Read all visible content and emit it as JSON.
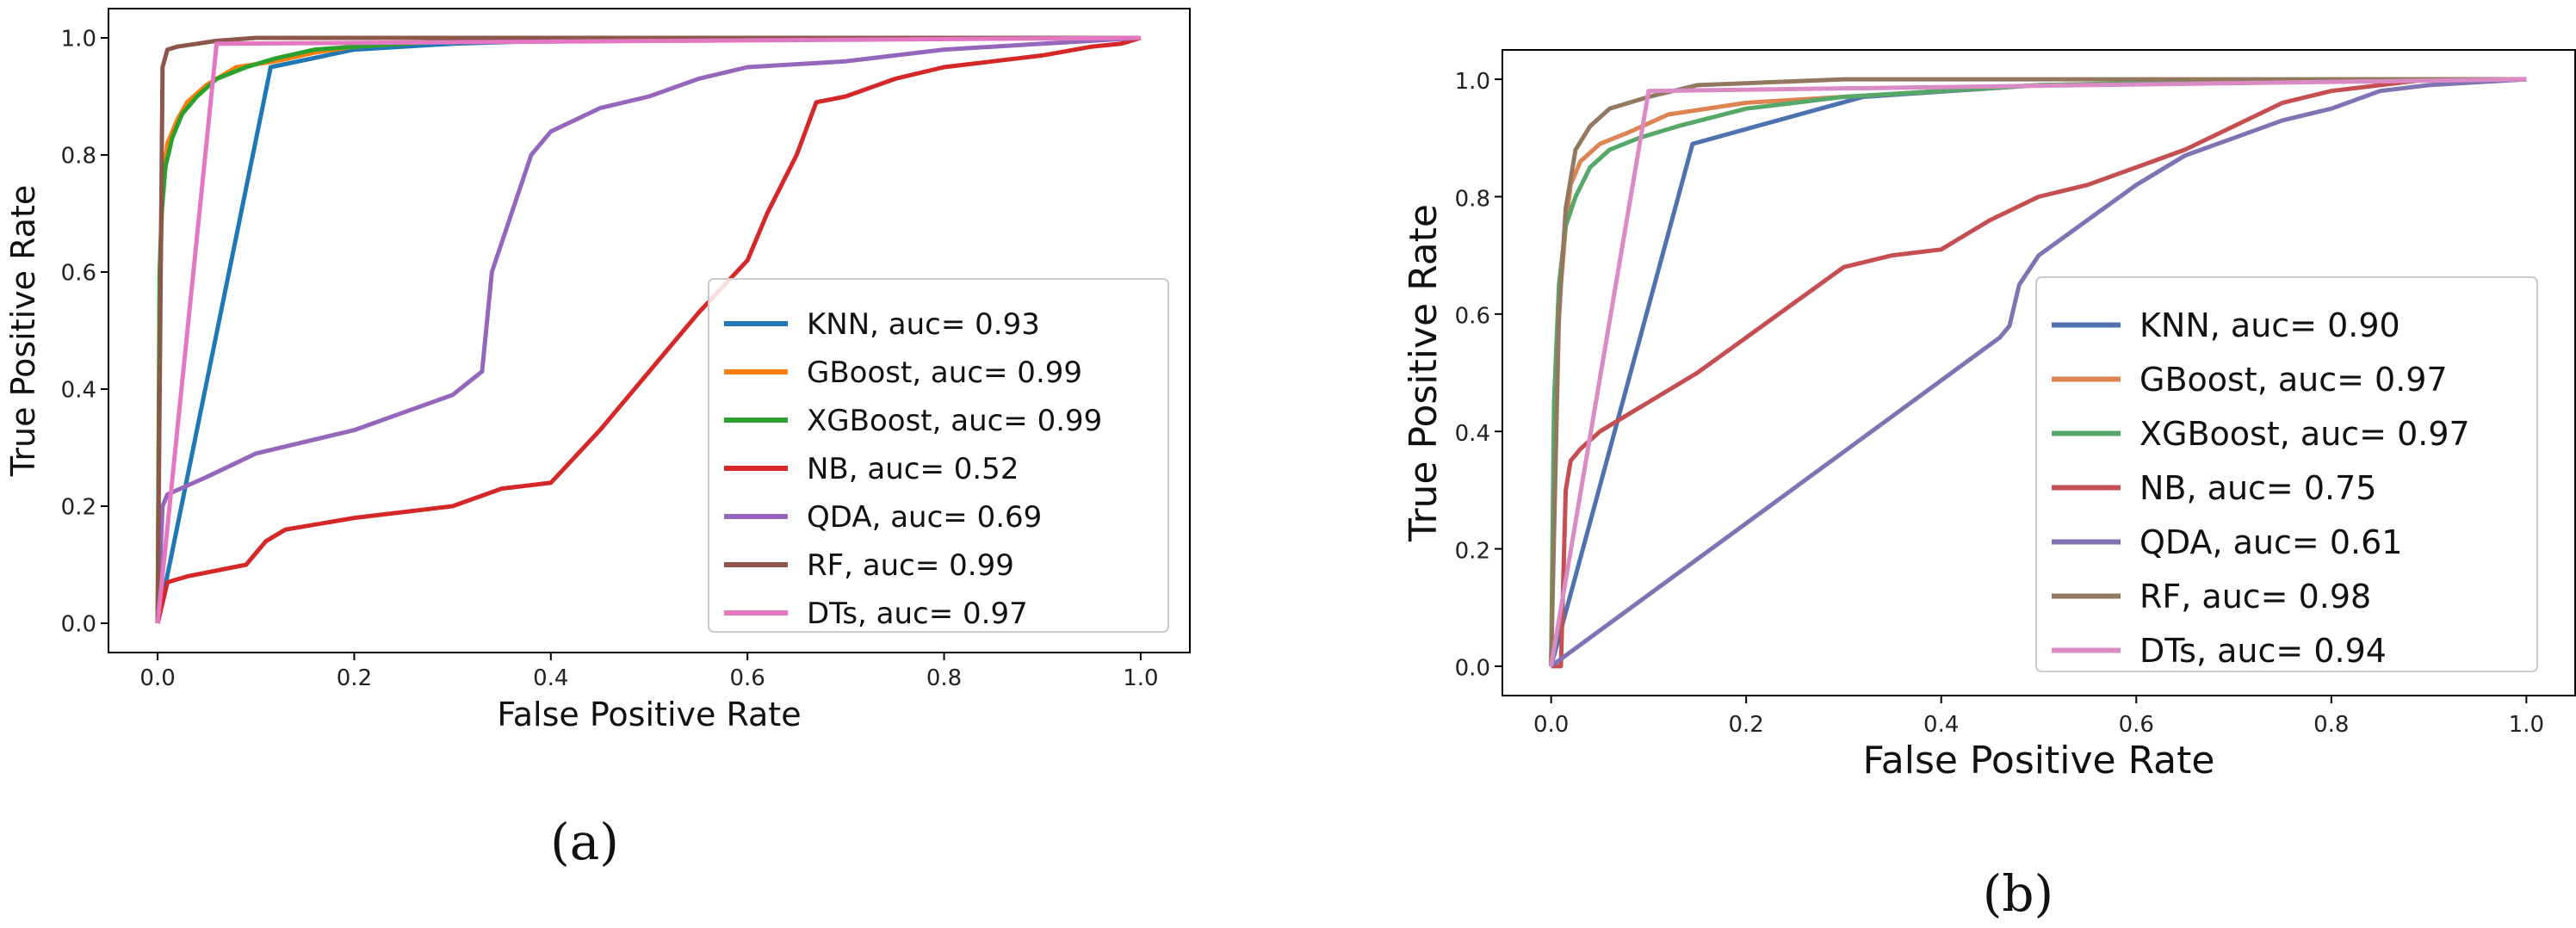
{
  "chart_data": [
    {
      "type": "line",
      "caption": "(a)",
      "xlabel": "False Positive Rate",
      "ylabel": "True Positive Rate",
      "xlim": [
        -0.05,
        1.05
      ],
      "ylim": [
        -0.05,
        1.05
      ],
      "xticks": [
        "0.0",
        "0.2",
        "0.4",
        "0.6",
        "0.8",
        "1.0"
      ],
      "yticks": [
        "0.0",
        "0.2",
        "0.4",
        "0.6",
        "0.8",
        "1.0"
      ],
      "legend_position": "lower-right",
      "series": [
        {
          "name": "KNN",
          "label": "KNN, auc= 0.93",
          "color": "#1f77b4",
          "x": [
            0,
            0.115,
            0.2,
            0.3,
            0.5,
            1.0
          ],
          "y": [
            0,
            0.95,
            0.98,
            0.99,
            1.0,
            1.0
          ]
        },
        {
          "name": "GBoost",
          "label": "GBoost, auc= 0.99",
          "color": "#ff7f0e",
          "x": [
            0,
            0.002,
            0.005,
            0.01,
            0.02,
            0.03,
            0.05,
            0.08,
            0.12,
            0.16,
            0.2,
            0.3,
            0.5,
            1.0
          ],
          "y": [
            0,
            0.55,
            0.75,
            0.82,
            0.86,
            0.89,
            0.92,
            0.95,
            0.96,
            0.975,
            0.985,
            0.995,
            1.0,
            1.0
          ]
        },
        {
          "name": "XGBoost",
          "label": "XGBoost, auc= 0.99",
          "color": "#2ca02c",
          "x": [
            0,
            0.002,
            0.004,
            0.008,
            0.015,
            0.025,
            0.04,
            0.06,
            0.09,
            0.12,
            0.16,
            0.2,
            0.3,
            0.5,
            1.0
          ],
          "y": [
            0,
            0.6,
            0.7,
            0.78,
            0.83,
            0.87,
            0.9,
            0.93,
            0.95,
            0.965,
            0.98,
            0.985,
            0.995,
            1.0,
            1.0
          ]
        },
        {
          "name": "NB",
          "label": "NB, auc= 0.52",
          "color": "#d62728",
          "x": [
            0,
            0.01,
            0.03,
            0.06,
            0.09,
            0.11,
            0.13,
            0.2,
            0.3,
            0.35,
            0.4,
            0.45,
            0.5,
            0.55,
            0.6,
            0.62,
            0.65,
            0.67,
            0.7,
            0.75,
            0.8,
            0.85,
            0.9,
            0.95,
            0.98,
            1.0
          ],
          "y": [
            0,
            0.07,
            0.08,
            0.09,
            0.1,
            0.14,
            0.16,
            0.18,
            0.2,
            0.23,
            0.24,
            0.33,
            0.43,
            0.53,
            0.62,
            0.7,
            0.8,
            0.89,
            0.9,
            0.93,
            0.95,
            0.96,
            0.97,
            0.985,
            0.99,
            1.0
          ]
        },
        {
          "name": "QDA",
          "label": "QDA, auc= 0.69",
          "color": "#9467bd",
          "x": [
            0,
            0.005,
            0.01,
            0.05,
            0.1,
            0.15,
            0.2,
            0.25,
            0.3,
            0.33,
            0.34,
            0.36,
            0.38,
            0.4,
            0.45,
            0.5,
            0.55,
            0.6,
            0.7,
            0.75,
            0.8,
            0.9,
            1.0
          ],
          "y": [
            0,
            0.2,
            0.22,
            0.25,
            0.29,
            0.31,
            0.33,
            0.36,
            0.39,
            0.43,
            0.6,
            0.7,
            0.8,
            0.84,
            0.88,
            0.9,
            0.93,
            0.95,
            0.96,
            0.97,
            0.98,
            0.99,
            1.0
          ]
        },
        {
          "name": "RF",
          "label": "RF, auc= 0.99",
          "color": "#8c564b",
          "x": [
            0,
            0.005,
            0.01,
            0.02,
            0.04,
            0.06,
            0.1,
            0.2,
            1.0
          ],
          "y": [
            0,
            0.95,
            0.98,
            0.985,
            0.99,
            0.995,
            1.0,
            1.0,
            1.0
          ]
        },
        {
          "name": "DTs",
          "label": "DTs, auc= 0.97",
          "color": "#e377c2",
          "x": [
            0,
            0.06,
            1.0
          ],
          "y": [
            0,
            0.99,
            1.0
          ]
        }
      ]
    },
    {
      "type": "line",
      "caption": "(b)",
      "xlabel": "False Positive Rate",
      "ylabel": "True Positive Rate",
      "xlim": [
        -0.05,
        1.05
      ],
      "ylim": [
        -0.05,
        1.05
      ],
      "xticks": [
        "0.0",
        "0.2",
        "0.4",
        "0.6",
        "0.8",
        "1.0"
      ],
      "yticks": [
        "0.0",
        "0.2",
        "0.4",
        "0.6",
        "0.8",
        "1.0"
      ],
      "legend_position": "lower-right",
      "series": [
        {
          "name": "KNN",
          "label": "KNN, auc= 0.90",
          "color": "#4c72b0",
          "x": [
            0,
            0.145,
            0.32,
            0.5,
            1.0
          ],
          "y": [
            0,
            0.89,
            0.97,
            0.99,
            1.0
          ]
        },
        {
          "name": "GBoost",
          "label": "GBoost, auc= 0.97",
          "color": "#dd8452",
          "x": [
            0,
            0.005,
            0.01,
            0.015,
            0.02,
            0.03,
            0.05,
            0.08,
            0.12,
            0.2,
            0.3,
            0.5,
            0.8,
            1.0
          ],
          "y": [
            0,
            0.5,
            0.65,
            0.75,
            0.82,
            0.86,
            0.89,
            0.91,
            0.94,
            0.96,
            0.97,
            0.99,
            1.0,
            1.0
          ]
        },
        {
          "name": "XGBoost",
          "label": "XGBoost, auc= 0.97",
          "color": "#55a868",
          "x": [
            0,
            0.003,
            0.008,
            0.015,
            0.025,
            0.04,
            0.06,
            0.09,
            0.13,
            0.2,
            0.3,
            0.5,
            0.8,
            1.0
          ],
          "y": [
            0,
            0.45,
            0.65,
            0.75,
            0.8,
            0.85,
            0.88,
            0.9,
            0.92,
            0.95,
            0.97,
            0.99,
            1.0,
            1.0
          ]
        },
        {
          "name": "NB",
          "label": "NB, auc= 0.75",
          "color": "#c44e52",
          "x": [
            0,
            0.01,
            0.015,
            0.02,
            0.025,
            0.03,
            0.05,
            0.1,
            0.15,
            0.2,
            0.25,
            0.3,
            0.35,
            0.4,
            0.45,
            0.5,
            0.55,
            0.6,
            0.65,
            0.7,
            0.75,
            0.8,
            0.85,
            0.9,
            1.0
          ],
          "y": [
            0,
            0.0,
            0.3,
            0.35,
            0.36,
            0.37,
            0.4,
            0.45,
            0.5,
            0.56,
            0.62,
            0.68,
            0.7,
            0.71,
            0.76,
            0.8,
            0.82,
            0.85,
            0.88,
            0.92,
            0.96,
            0.98,
            0.99,
            1.0,
            1.0
          ]
        },
        {
          "name": "QDA",
          "label": "QDA, auc= 0.61",
          "color": "#8172b3",
          "x": [
            0,
            0.46,
            0.47,
            0.48,
            0.5,
            0.55,
            0.6,
            0.65,
            0.7,
            0.75,
            0.8,
            0.85,
            0.9,
            1.0
          ],
          "y": [
            0,
            0.56,
            0.58,
            0.65,
            0.7,
            0.76,
            0.82,
            0.87,
            0.9,
            0.93,
            0.95,
            0.98,
            0.99,
            1.0
          ]
        },
        {
          "name": "RF",
          "label": "RF, auc= 0.98",
          "color": "#937860",
          "x": [
            0,
            0.008,
            0.015,
            0.025,
            0.04,
            0.06,
            0.1,
            0.15,
            0.3,
            1.0
          ],
          "y": [
            0,
            0.6,
            0.78,
            0.88,
            0.92,
            0.95,
            0.97,
            0.99,
            1.0,
            1.0
          ]
        },
        {
          "name": "DTs",
          "label": "DTs, auc= 0.94",
          "color": "#da8bc3",
          "x": [
            0,
            0.1,
            1.0
          ],
          "y": [
            0,
            0.98,
            1.0
          ]
        }
      ]
    }
  ]
}
